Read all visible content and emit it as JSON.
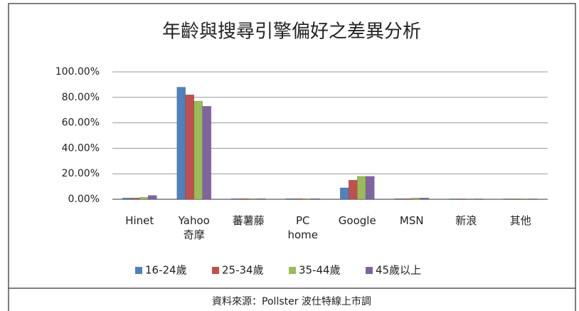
{
  "chart_data": {
    "type": "bar",
    "title": "年齡與搜尋引擎偏好之差異分析",
    "categories": [
      "Hinet",
      "Yahoo\n奇摩",
      "蕃薯藤",
      "PC\nhome",
      "Google",
      "MSN",
      "新浪",
      "其他"
    ],
    "series": [
      {
        "name": "16-24歲",
        "color": "#4f81bd",
        "values": [
          1,
          88,
          0.5,
          0.5,
          9,
          0.5,
          0.3,
          0.3
        ]
      },
      {
        "name": "25-34歲",
        "color": "#c0504d",
        "values": [
          1,
          82,
          0.5,
          0.5,
          15,
          0.5,
          0.3,
          0.3
        ]
      },
      {
        "name": "35-44歲",
        "color": "#9bbb59",
        "values": [
          1.5,
          77,
          0.5,
          0.5,
          18,
          1,
          0.3,
          0.3
        ]
      },
      {
        "name": "45歲以上",
        "color": "#8064a2",
        "values": [
          3,
          73,
          0.5,
          0.5,
          18,
          1,
          0.3,
          0.3
        ]
      }
    ],
    "ylim": [
      0,
      100
    ],
    "yticks": [
      {
        "value": 0,
        "label": "0.00%"
      },
      {
        "value": 20,
        "label": "20.00%"
      },
      {
        "value": 40,
        "label": "40.00%"
      },
      {
        "value": 60,
        "label": "60.00%"
      },
      {
        "value": 80,
        "label": "80.00%"
      },
      {
        "value": 100,
        "label": "100.00%"
      }
    ],
    "grid": true,
    "source": "資料來源：Pollster 波仕特線上市調"
  }
}
